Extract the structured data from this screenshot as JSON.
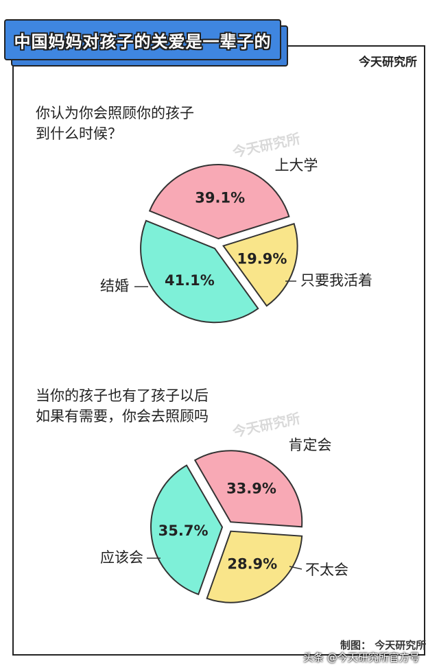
{
  "header": {
    "title": "中国妈妈对孩子的关爱是一辈子的",
    "brand": "今天研究所"
  },
  "watermark": "今天研究所",
  "colors": {
    "pink": "#f8a9b5",
    "green": "#7ef0d8",
    "yellow": "#f9e58a",
    "blue": "#3f86e0"
  },
  "chart_data": [
    {
      "type": "pie",
      "title_lines": [
        "你认为你会照顾你的孩子",
        "到什么时候？"
      ],
      "categories": [
        "上大学",
        "只要我活着",
        "结婚"
      ],
      "values": [
        39.1,
        19.9,
        41.1
      ],
      "value_labels": [
        "39.1%",
        "19.9%",
        "41.1%"
      ],
      "colors": [
        "#f8a9b5",
        "#f9e58a",
        "#7ef0d8"
      ]
    },
    {
      "type": "pie",
      "title_lines": [
        "当你的孩子也有了孩子以后",
        "如果有需要，你会去照顾吗"
      ],
      "categories": [
        "肯定会",
        "不太会",
        "应该会"
      ],
      "values": [
        33.9,
        28.9,
        35.7
      ],
      "value_labels": [
        "33.9%",
        "28.9%",
        "35.7%"
      ],
      "colors": [
        "#f8a9b5",
        "#f9e58a",
        "#7ef0d8"
      ]
    }
  ],
  "footer": {
    "credit": "制图： 今天研究所",
    "source": "头条 @今天研究所官方号"
  }
}
